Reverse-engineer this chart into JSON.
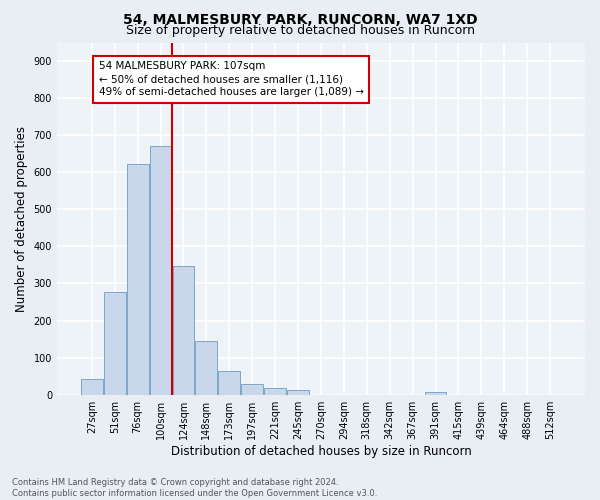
{
  "title": "54, MALMESBURY PARK, RUNCORN, WA7 1XD",
  "subtitle": "Size of property relative to detached houses in Runcorn",
  "xlabel": "Distribution of detached houses by size in Runcorn",
  "ylabel": "Number of detached properties",
  "bins": [
    "27sqm",
    "51sqm",
    "76sqm",
    "100sqm",
    "124sqm",
    "148sqm",
    "173sqm",
    "197sqm",
    "221sqm",
    "245sqm",
    "270sqm",
    "294sqm",
    "318sqm",
    "342sqm",
    "367sqm",
    "391sqm",
    "415sqm",
    "439sqm",
    "464sqm",
    "488sqm",
    "512sqm"
  ],
  "heights": [
    42,
    278,
    622,
    670,
    348,
    145,
    65,
    28,
    18,
    12,
    0,
    0,
    0,
    0,
    0,
    8,
    0,
    0,
    0,
    0,
    0
  ],
  "bar_color": "#c8d8ea",
  "bar_edge_color": "#7ba7c7",
  "vline_color": "#cc0000",
  "annotation_text": "54 MALMESBURY PARK: 107sqm\n← 50% of detached houses are smaller (1,116)\n49% of semi-detached houses are larger (1,089) →",
  "annotation_box_color": "#ffffff",
  "annotation_box_edge_color": "#cc0000",
  "ylim": [
    0,
    950
  ],
  "yticks": [
    0,
    100,
    200,
    300,
    400,
    500,
    600,
    700,
    800,
    900
  ],
  "footer": "Contains HM Land Registry data © Crown copyright and database right 2024.\nContains public sector information licensed under the Open Government Licence v3.0.",
  "bg_color": "#e8eef4",
  "plot_bg_color": "#eef3f8",
  "grid_color": "#ffffff",
  "title_fontsize": 10,
  "subtitle_fontsize": 9,
  "tick_fontsize": 7,
  "label_fontsize": 8.5,
  "annotation_fontsize": 7.5,
  "footer_fontsize": 6
}
